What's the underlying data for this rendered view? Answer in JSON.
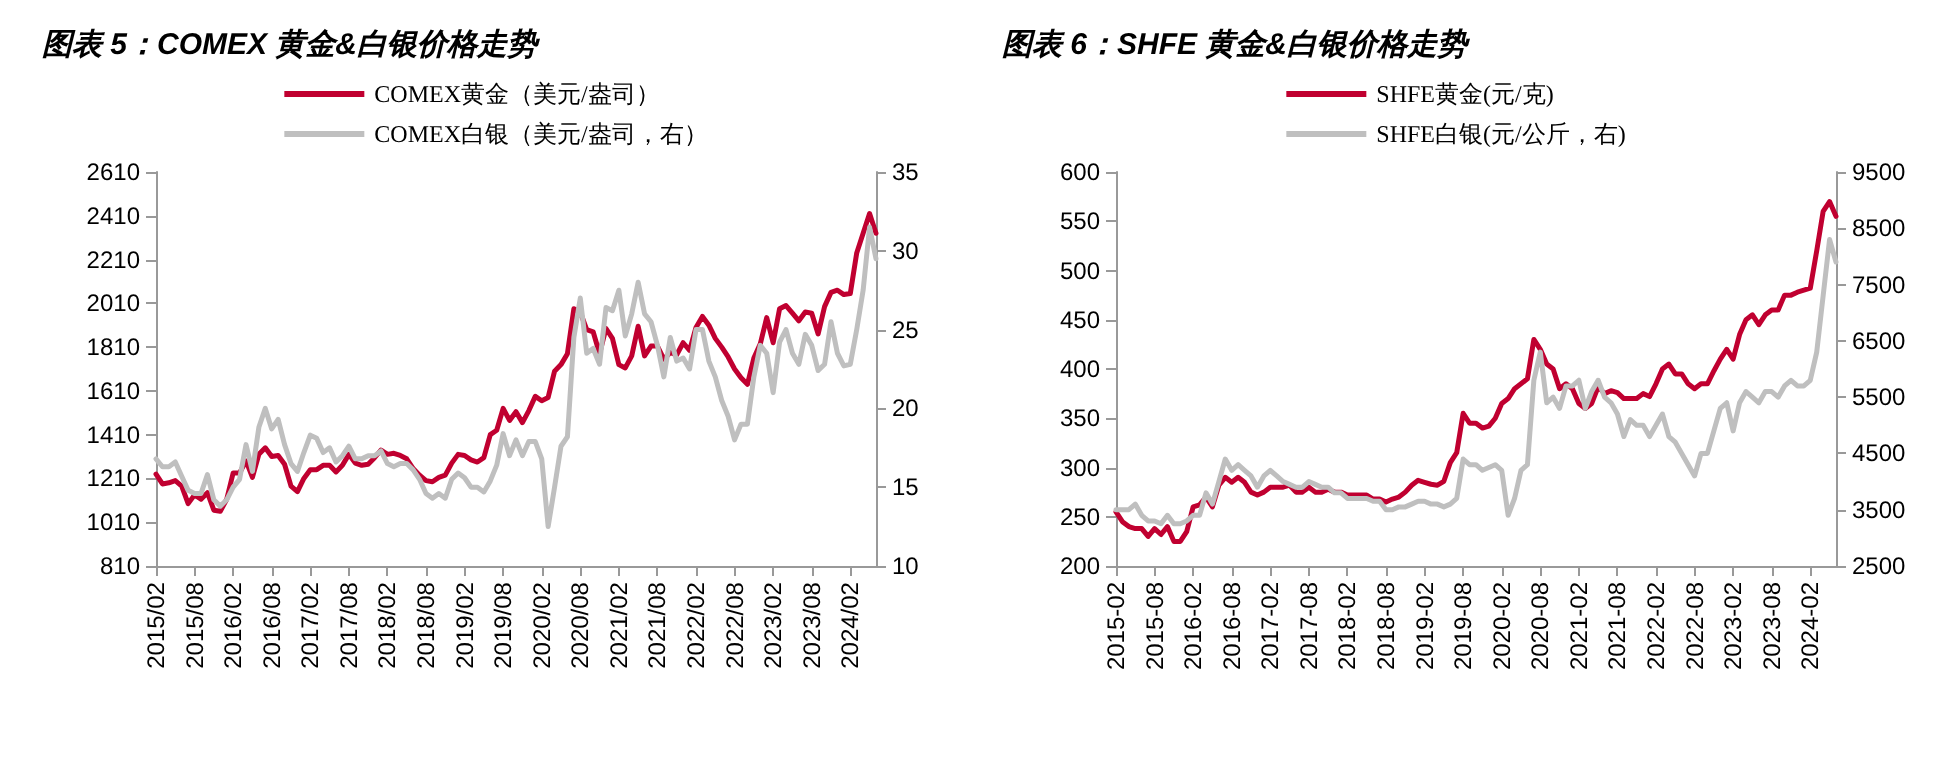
{
  "chart_data": [
    {
      "type": "line",
      "title": "图表 5：COMEX 黄金&白银价格走势",
      "legend": "top",
      "grid": false,
      "marker": "none",
      "line_style": "solid",
      "categories": [
        "2015/02",
        null,
        null,
        null,
        null,
        null,
        "2015/08",
        null,
        null,
        null,
        null,
        null,
        "2016/02",
        null,
        null,
        null,
        null,
        null,
        "2016/08",
        null,
        null,
        null,
        null,
        null,
        "2017/02",
        null,
        null,
        null,
        null,
        null,
        "2017/08",
        null,
        null,
        null,
        null,
        null,
        "2018/02",
        null,
        null,
        null,
        null,
        null,
        "2018/08",
        null,
        null,
        null,
        null,
        null,
        "2019/02",
        null,
        null,
        null,
        null,
        null,
        "2019/08",
        null,
        null,
        null,
        null,
        null,
        "2020/02",
        null,
        null,
        null,
        null,
        null,
        "2020/08",
        null,
        null,
        null,
        null,
        null,
        "2021/02",
        null,
        null,
        null,
        null,
        null,
        "2021/08",
        null,
        null,
        null,
        null,
        null,
        "2022/02",
        null,
        null,
        null,
        null,
        null,
        "2022/08",
        null,
        null,
        null,
        null,
        null,
        "2023/02",
        null,
        null,
        null,
        null,
        null,
        "2023/08",
        null,
        null,
        null,
        null,
        null,
        "2024/02",
        null,
        null,
        null,
        null
      ],
      "ylim": [
        810,
        2610
      ],
      "yticks": [
        810,
        1010,
        1210,
        1410,
        1610,
        1810,
        2010,
        2210,
        2410,
        2610
      ],
      "y2lim": [
        10,
        35
      ],
      "y2ticks": [
        10,
        15,
        20,
        25,
        30,
        35
      ],
      "series": [
        {
          "name": "COMEX黄金（美元/盎司）",
          "color": "#c00030",
          "values": [
            1230,
            1185,
            1190,
            1200,
            1175,
            1095,
            1135,
            1115,
            1145,
            1065,
            1060,
            1115,
            1235,
            1235,
            1290,
            1215,
            1320,
            1350,
            1310,
            1315,
            1275,
            1175,
            1150,
            1210,
            1250,
            1250,
            1270,
            1270,
            1240,
            1270,
            1320,
            1280,
            1270,
            1275,
            1305,
            1340,
            1320,
            1325,
            1315,
            1300,
            1255,
            1225,
            1200,
            1195,
            1215,
            1225,
            1280,
            1320,
            1315,
            1295,
            1285,
            1305,
            1410,
            1430,
            1530,
            1475,
            1515,
            1465,
            1520,
            1585,
            1565,
            1580,
            1700,
            1730,
            1780,
            1985,
            1970,
            1890,
            1880,
            1780,
            1895,
            1850,
            1730,
            1715,
            1770,
            1905,
            1770,
            1815,
            1815,
            1755,
            1785,
            1775,
            1830,
            1795,
            1900,
            1950,
            1910,
            1850,
            1810,
            1765,
            1710,
            1670,
            1640,
            1760,
            1825,
            1945,
            1830,
            1985,
            2000,
            1965,
            1930,
            1970,
            1965,
            1870,
            1995,
            2060,
            2070,
            2050,
            2055,
            2240,
            2330,
            2420,
            2330
          ]
        },
        {
          "name": "COMEX白银（美元/盎司，右）",
          "color": "#bfbfbf",
          "axis": "y2",
          "values": [
            16.8,
            16.3,
            16.3,
            16.6,
            15.7,
            14.8,
            14.6,
            14.6,
            15.8,
            14.2,
            13.8,
            14.2,
            15.0,
            15.5,
            17.7,
            16.0,
            18.8,
            20.0,
            18.7,
            19.3,
            17.7,
            16.5,
            16.0,
            17.2,
            18.3,
            18.1,
            17.2,
            17.5,
            16.6,
            17.0,
            17.6,
            16.8,
            16.8,
            17.0,
            17.0,
            17.3,
            16.5,
            16.3,
            16.5,
            16.5,
            16.1,
            15.5,
            14.6,
            14.3,
            14.6,
            14.3,
            15.5,
            15.9,
            15.6,
            15.0,
            15.0,
            14.7,
            15.4,
            16.4,
            18.4,
            17.0,
            18.0,
            17.0,
            17.9,
            17.9,
            16.8,
            12.5,
            15.0,
            17.6,
            18.2,
            24.5,
            27.0,
            23.5,
            23.8,
            22.8,
            26.4,
            26.2,
            27.5,
            24.6,
            26.0,
            28.0,
            26.0,
            25.5,
            24.0,
            22.0,
            24.5,
            23.0,
            23.2,
            22.5,
            25.0,
            25.0,
            23.0,
            22.0,
            20.5,
            19.5,
            18.0,
            19.0,
            19.0,
            22.0,
            24.0,
            23.5,
            21.0,
            24.2,
            25.0,
            23.5,
            22.8,
            24.7,
            24.0,
            22.4,
            22.8,
            25.5,
            23.5,
            22.7,
            22.8,
            25.0,
            27.5,
            31.5,
            29.5
          ]
        }
      ]
    },
    {
      "type": "line",
      "title": "图表 6：SHFE 黄金&白银价格走势",
      "legend": "top",
      "grid": false,
      "marker": "none",
      "line_style": "solid",
      "categories": [
        "2015-02",
        null,
        null,
        null,
        null,
        null,
        "2015-08",
        null,
        null,
        null,
        null,
        null,
        "2016-02",
        null,
        null,
        null,
        null,
        null,
        "2016-08",
        null,
        null,
        null,
        null,
        null,
        "2017-02",
        null,
        null,
        null,
        null,
        null,
        "2017-08",
        null,
        null,
        null,
        null,
        null,
        "2018-02",
        null,
        null,
        null,
        null,
        null,
        "2018-08",
        null,
        null,
        null,
        null,
        null,
        "2019-02",
        null,
        null,
        null,
        null,
        null,
        "2019-08",
        null,
        null,
        null,
        null,
        null,
        "2020-02",
        null,
        null,
        null,
        null,
        null,
        "2020-08",
        null,
        null,
        null,
        null,
        null,
        "2021-02",
        null,
        null,
        null,
        null,
        null,
        "2021-08",
        null,
        null,
        null,
        null,
        null,
        "2022-02",
        null,
        null,
        null,
        null,
        null,
        "2022-08",
        null,
        null,
        null,
        null,
        null,
        "2023-02",
        null,
        null,
        null,
        null,
        null,
        "2023-08",
        null,
        null,
        null,
        null,
        null,
        "2024-02",
        null,
        null,
        null,
        null
      ],
      "ylim": [
        200,
        600
      ],
      "yticks": [
        200,
        250,
        300,
        350,
        400,
        450,
        500,
        550,
        600
      ],
      "y2lim": [
        2500,
        9500
      ],
      "y2ticks": [
        2500,
        3500,
        4500,
        5500,
        6500,
        7500,
        8500,
        9500
      ],
      "series": [
        {
          "name": "SHFE黄金(元/克)",
          "color": "#c00030",
          "values": [
            255,
            245,
            240,
            238,
            238,
            230,
            238,
            232,
            240,
            225,
            225,
            235,
            260,
            262,
            270,
            260,
            282,
            290,
            285,
            290,
            285,
            275,
            272,
            275,
            280,
            280,
            280,
            282,
            275,
            275,
            280,
            275,
            275,
            278,
            275,
            275,
            272,
            272,
            272,
            272,
            268,
            268,
            265,
            268,
            270,
            275,
            282,
            287,
            285,
            283,
            282,
            286,
            305,
            315,
            355,
            345,
            345,
            340,
            342,
            350,
            365,
            370,
            380,
            385,
            390,
            430,
            420,
            405,
            400,
            380,
            385,
            380,
            365,
            360,
            365,
            382,
            375,
            378,
            376,
            370,
            370,
            370,
            375,
            372,
            385,
            400,
            405,
            395,
            395,
            385,
            380,
            385,
            385,
            398,
            410,
            420,
            410,
            435,
            450,
            455,
            445,
            455,
            460,
            460,
            475,
            475,
            478,
            480,
            482,
            520,
            560,
            570,
            555
          ]
        },
        {
          "name": "SHFE白银(元/公斤，右)",
          "color": "#bfbfbf",
          "axis": "y2",
          "values": [
            3500,
            3500,
            3500,
            3600,
            3400,
            3300,
            3300,
            3250,
            3400,
            3250,
            3250,
            3300,
            3400,
            3400,
            3800,
            3600,
            4000,
            4400,
            4200,
            4300,
            4200,
            4100,
            3900,
            4100,
            4200,
            4100,
            4000,
            3950,
            3900,
            3900,
            4000,
            3950,
            3900,
            3900,
            3800,
            3800,
            3700,
            3700,
            3700,
            3700,
            3650,
            3650,
            3500,
            3500,
            3550,
            3550,
            3600,
            3650,
            3650,
            3600,
            3600,
            3550,
            3600,
            3700,
            4400,
            4300,
            4300,
            4200,
            4250,
            4300,
            4200,
            3400,
            3700,
            4200,
            4300,
            5800,
            6300,
            5400,
            5500,
            5300,
            5700,
            5700,
            5800,
            5300,
            5600,
            5800,
            5500,
            5400,
            5200,
            4800,
            5100,
            5000,
            5000,
            4800,
            5000,
            5200,
            4800,
            4700,
            4500,
            4300,
            4100,
            4500,
            4500,
            4900,
            5300,
            5400,
            4900,
            5400,
            5600,
            5500,
            5400,
            5600,
            5600,
            5500,
            5700,
            5800,
            5700,
            5700,
            5800,
            6300,
            7300,
            8300,
            7900
          ]
        }
      ]
    }
  ]
}
